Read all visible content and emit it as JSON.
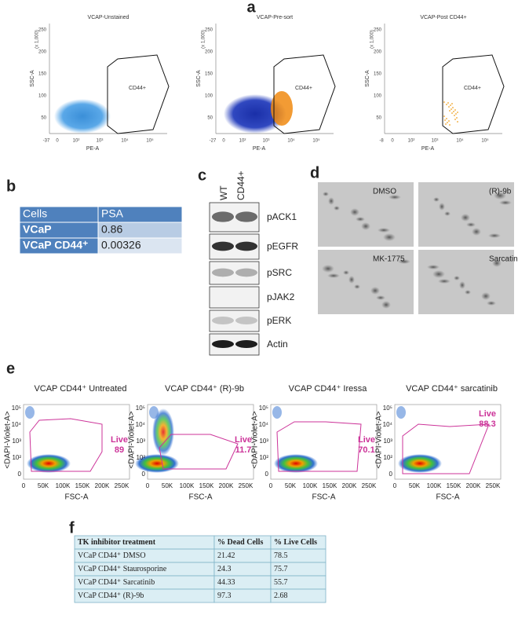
{
  "panel_a": {
    "label": "a",
    "y_label": "SSC-A",
    "y_unit": "(x 1,000)",
    "x_label": "PE-A",
    "gate": "CD44+",
    "yticks": [
      250,
      200,
      150,
      100,
      50
    ],
    "plots": [
      {
        "title": "VCAP-Unstained",
        "xticks": [
          "-37",
          "0",
          "10²",
          "10³",
          "10⁴",
          "10⁵"
        ]
      },
      {
        "title": "VCAP-Pre-sort",
        "xticks": [
          "-27",
          "0",
          "10²",
          "10³",
          "10⁴",
          "10⁵"
        ]
      },
      {
        "title": "VCAP-Post CD44+",
        "xticks": [
          "-8",
          "0",
          "10²",
          "10³",
          "10⁴",
          "10⁵"
        ]
      }
    ]
  },
  "panel_b": {
    "label": "b",
    "header": [
      "Cells",
      "PSA"
    ],
    "rows": [
      [
        "VCaP",
        0.86
      ],
      [
        "VCaP CD44⁺",
        0.00326
      ]
    ]
  },
  "panel_c": {
    "label": "c",
    "columns": [
      "WT",
      "CD44+"
    ],
    "bands": [
      "pACK1",
      "pEGFR",
      "pSRC",
      "pJAK2",
      "pERK",
      "Actin"
    ]
  },
  "panel_d": {
    "label": "d",
    "images": [
      "DMSO",
      "(R)-9b",
      "MK-1775",
      "Sarcatinib"
    ]
  },
  "panel_e": {
    "label": "e",
    "y_label": "<DAPI-Violet-A>",
    "x_label": "FSC-A",
    "gate": "Live",
    "yticks": [
      "10⁵",
      "10⁴",
      "10³",
      "10²",
      "0"
    ],
    "xticks": [
      "0",
      "50K",
      "100K",
      "150K",
      "200K",
      "250K"
    ],
    "plots": [
      {
        "title": "VCAP CD44⁺ Untreated",
        "live": 89
      },
      {
        "title": "VCAP CD44⁺ (R)-9b",
        "live": 11.7
      },
      {
        "title": "VCAP CD44⁺ Iressa",
        "live": 70.1
      },
      {
        "title": "VCAP CD44⁺ sarcatinib",
        "live": 88.3
      }
    ]
  },
  "panel_f": {
    "label": "f",
    "header": [
      "TK inhibitor treatment",
      "% Dead Cells",
      "% Live  Cells"
    ],
    "rows": [
      [
        "VCaP CD44⁺  DMSO",
        21.42,
        78.5
      ],
      [
        "VCaP CD44⁺ Staurosporine",
        24.3,
        75.7
      ],
      [
        "VCaP CD44⁺ Sarcatinib",
        44.33,
        55.7
      ],
      [
        "VCaP CD44⁺  (R)-9b",
        97.3,
        2.68
      ]
    ]
  }
}
